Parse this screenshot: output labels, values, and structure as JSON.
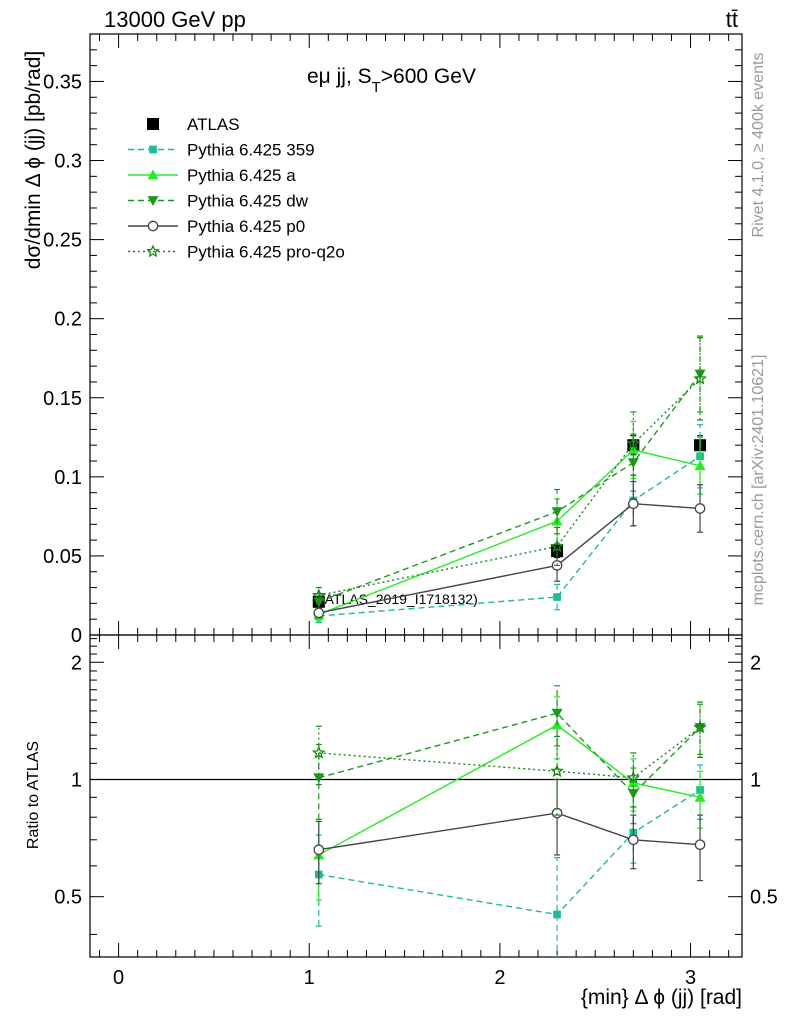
{
  "header": {
    "left": "13000 GeV pp",
    "right": "tt̄"
  },
  "side_labels": {
    "rivet": "Rivet 4.1.0, ≥ 400k events",
    "mcplots": "mcplots.cern.ch [arXiv:2401.10621]"
  },
  "watermark": "(ATLAS_2019_I1718132)",
  "colors": {
    "atlas": "#000000",
    "p359": "#1abc9c",
    "pa": "#22ee22",
    "pdw": "#1a9a1a",
    "pp0": "#444444",
    "pq2o": "#158a15"
  },
  "chart_data": [
    {
      "type": "line",
      "panel": "main",
      "title": "eμ jj, S_T>600 GeV",
      "title_main": "eμ jj, S",
      "title_sub": "T",
      "title_tail": ">600 GeV",
      "ylabel": "dσ/dmin Δ ϕ (jj) [pb/rad]",
      "xlim": [
        -0.15,
        3.27
      ],
      "ylim": [
        0,
        0.38
      ],
      "yticks": [
        0,
        0.05,
        0.1,
        0.15,
        0.2,
        0.25,
        0.3,
        0.35
      ],
      "ytick_labels": [
        "0",
        "0.05",
        "0.1",
        "0.15",
        "0.2",
        "0.25",
        "0.3",
        "0.35"
      ],
      "x": [
        1.05,
        2.3,
        2.7,
        3.05
      ],
      "series": [
        {
          "key": "atlas",
          "name": "ATLAS",
          "values": [
            0.021,
            0.053,
            0.12,
            0.12
          ],
          "errors": [
            0.002,
            0.004,
            0.006,
            0.006
          ],
          "marker": "square",
          "line": "none"
        },
        {
          "key": "p359",
          "name": "Pythia 6.425 359",
          "values": [
            0.012,
            0.024,
            0.085,
            0.113
          ],
          "errors": [
            0.004,
            0.008,
            0.016,
            0.02
          ],
          "marker": "smallsquare",
          "line": "dashed"
        },
        {
          "key": "pa",
          "name": "Pythia 6.425 a",
          "values": [
            0.013,
            0.072,
            0.117,
            0.107
          ],
          "errors": [
            0.004,
            0.014,
            0.018,
            0.018
          ],
          "marker": "triangle-up",
          "line": "solid"
        },
        {
          "key": "pdw",
          "name": "Pythia 6.425 dw",
          "values": [
            0.021,
            0.078,
            0.109,
            0.165
          ],
          "errors": [
            0.005,
            0.014,
            0.018,
            0.024
          ],
          "marker": "triangle-down",
          "line": "dashed"
        },
        {
          "key": "pp0",
          "name": "Pythia 6.425 p0",
          "values": [
            0.014,
            0.044,
            0.083,
            0.08
          ],
          "errors": [
            0.003,
            0.01,
            0.014,
            0.015
          ],
          "marker": "circle-open",
          "line": "solid"
        },
        {
          "key": "pq2o",
          "name": "Pythia 6.425 pro-q2o",
          "values": [
            0.025,
            0.056,
            0.121,
            0.162
          ],
          "errors": [
            0.005,
            0.012,
            0.02,
            0.026
          ],
          "marker": "star-open",
          "line": "dotted"
        }
      ]
    },
    {
      "type": "line",
      "panel": "ratio",
      "ylabel": "Ratio to ATLAS",
      "xlabel": "{min} Δ ϕ (jj) [rad]",
      "xlim": [
        -0.15,
        3.27
      ],
      "xticks": [
        0,
        1,
        2,
        3
      ],
      "xtick_labels": [
        "0",
        "1",
        "2",
        "3"
      ],
      "ylim": [
        0.35,
        2.35
      ],
      "yscale": "log",
      "yticks": [
        0.5,
        1,
        2
      ],
      "ytick_labels": [
        "0.5",
        "1",
        "2"
      ],
      "x": [
        1.05,
        2.3,
        2.7,
        3.05
      ],
      "series": [
        {
          "key": "p359",
          "name": "Pythia 6.425 359",
          "values": [
            0.57,
            0.45,
            0.73,
            0.94
          ],
          "errors": [
            0.15,
            0.18,
            0.12,
            0.15
          ]
        },
        {
          "key": "pa",
          "name": "Pythia 6.425 a",
          "values": [
            0.64,
            1.38,
            0.98,
            0.9
          ],
          "errors": [
            0.15,
            0.25,
            0.15,
            0.15
          ]
        },
        {
          "key": "pdw",
          "name": "Pythia 6.425 dw",
          "values": [
            1.01,
            1.48,
            0.92,
            1.36
          ],
          "errors": [
            0.22,
            0.26,
            0.15,
            0.2
          ]
        },
        {
          "key": "pp0",
          "name": "Pythia 6.425 p0",
          "values": [
            0.66,
            0.82,
            0.7,
            0.68
          ],
          "errors": [
            0.12,
            0.18,
            0.11,
            0.13
          ]
        },
        {
          "key": "pq2o",
          "name": "Pythia 6.425 pro-q2o",
          "values": [
            1.17,
            1.05,
            1.01,
            1.36
          ],
          "errors": [
            0.2,
            0.24,
            0.16,
            0.22
          ]
        }
      ]
    }
  ]
}
